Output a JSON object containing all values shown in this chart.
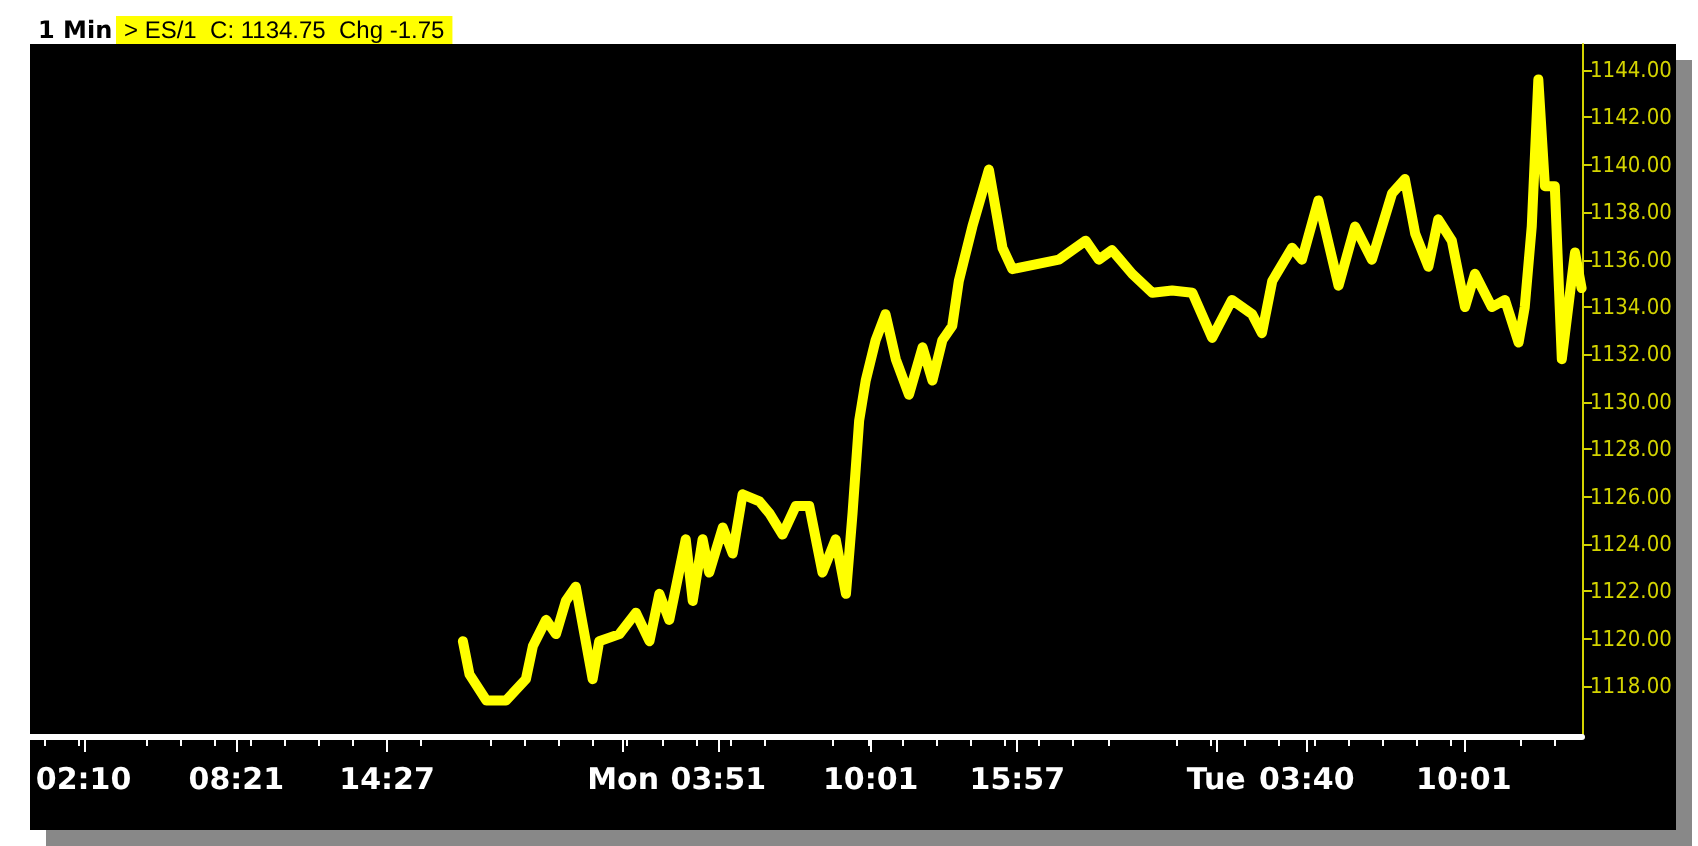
{
  "chart_data": {
    "type": "line",
    "title": "1 Min",
    "subtitle": "> ES/1  C: 1134.75  Chg -1.75",
    "x": [
      "--08-01T17:31",
      "--08-01T17:47",
      "--08-01T18:28",
      "--08-01T19:16",
      "--08-01T20:04",
      "--08-01T20:21",
      "--08-01T20:53",
      "--08-01T21:17",
      "--08-01T21:41",
      "--08-01T22:05",
      "--08-01T22:46",
      "--08-01T23:02",
      "--08-01T23:51",
      "--08-02T00:31",
      "--08-02T01:04",
      "--08-02T01:28",
      "--08-02T01:52",
      "--08-02T02:32",
      "--08-02T02:49",
      "--08-02T03:13",
      "--08-02T03:29",
      "--08-02T04:02",
      "--08-02T04:26",
      "--08-02T04:50",
      "--08-02T05:31",
      "--08-02T05:55",
      "--08-02T06:27",
      "--08-02T06:59",
      "--08-02T07:32",
      "--08-02T08:04",
      "--08-02T08:36",
      "--08-02T09:01",
      "--08-02T09:17",
      "--08-02T09:33",
      "--08-02T09:49",
      "--08-02T10:13",
      "--08-02T10:37",
      "--08-02T11:02",
      "--08-02T11:34",
      "--08-02T12:07",
      "--08-02T12:31",
      "--08-02T12:55",
      "--08-02T13:19",
      "--08-02T13:35",
      "--08-02T14:08",
      "--08-02T14:48",
      "--08-02T15:21",
      "--08-02T15:45",
      "--08-02T17:38",
      "--08-02T18:43",
      "--08-02T19:15",
      "--08-02T19:47",
      "--08-02T20:36",
      "--08-02T21:25",
      "--08-02T22:13",
      "--08-02T23:02",
      "--08-02T23:50",
      "--08-03T00:38",
      "--08-03T01:27",
      "--08-03T01:51",
      "--08-03T02:16",
      "--08-03T03:04",
      "--08-03T03:28",
      "--08-03T04:08",
      "--08-03T04:57",
      "--08-03T05:37",
      "--08-03T06:18",
      "--08-03T07:07",
      "--08-03T07:38",
      "--08-03T08:03",
      "--08-03T08:35",
      "--08-03T08:59",
      "--08-03T09:32",
      "--08-03T10:04",
      "--08-03T10:28",
      "--08-03T11:09",
      "--08-03T11:41",
      "--08-03T12:14",
      "--08-03T12:29",
      "--08-03T12:46",
      "--08-03T13:02",
      "--08-03T13:18",
      "--08-03T13:42",
      "--08-03T13:59",
      "--08-03T14:31",
      "--08-03T14:47"
    ],
    "series": [
      {
        "color": "#ffff00",
        "values": [
          1119.9,
          1118.5,
          1117.4,
          1117.4,
          1118.3,
          1119.7,
          1120.8,
          1120.2,
          1121.6,
          1122.2,
          1118.3,
          1119.9,
          1120.2,
          1121.1,
          1119.9,
          1121.9,
          1120.8,
          1124.2,
          1121.6,
          1124.2,
          1122.8,
          1124.7,
          1123.6,
          1126.1,
          1125.8,
          1125.3,
          1124.4,
          1125.6,
          1125.6,
          1122.8,
          1124.2,
          1121.9,
          1125.3,
          1129.2,
          1130.9,
          1132.6,
          1133.7,
          1131.8,
          1130.3,
          1132.3,
          1130.9,
          1132.6,
          1133.2,
          1135.1,
          1137.4,
          1139.8,
          1136.5,
          1135.6,
          1136.0,
          1136.8,
          1136.0,
          1136.4,
          1135.4,
          1134.6,
          1134.7,
          1134.6,
          1132.7,
          1134.3,
          1133.7,
          1132.9,
          1135.1,
          1136.5,
          1136.0,
          1138.5,
          1134.9,
          1137.4,
          1136.0,
          1138.8,
          1139.4,
          1137.1,
          1135.7,
          1137.7,
          1136.8,
          1134.0,
          1135.4,
          1134.0,
          1134.3,
          1132.5,
          1134.0,
          1137.4,
          1143.6,
          1139.1,
          1139.1,
          1131.8,
          1136.3,
          1134.8
        ]
      }
    ],
    "xlim": [
      "--08-01T00:00",
      "--08-03T14:48"
    ],
    "xticks": [
      {
        "value": "--08-01T02:10",
        "label": "02:10"
      },
      {
        "value": "--08-01T08:21",
        "label": "08:21"
      },
      {
        "value": "--08-01T14:27",
        "label": "14:27"
      },
      {
        "value": "--08-02T00:00",
        "label": "Mon"
      },
      {
        "value": "--08-02T03:51",
        "label": "03:51"
      },
      {
        "value": "--08-02T10:01",
        "label": "10:01"
      },
      {
        "value": "--08-02T15:57",
        "label": "15:57"
      },
      {
        "value": "--08-03T00:00",
        "label": "Tue"
      },
      {
        "value": "--08-03T03:40",
        "label": "03:40"
      },
      {
        "value": "--08-03T10:01",
        "label": "10:01"
      }
    ],
    "ylim": [
      1115.9,
      1145.1
    ],
    "yticks": [
      {
        "value": 1118,
        "label": "1118.00"
      },
      {
        "value": 1120,
        "label": "1120.00"
      },
      {
        "value": 1122,
        "label": "1122.00"
      },
      {
        "value": 1124,
        "label": "1124.00"
      },
      {
        "value": 1126,
        "label": "1126.00"
      },
      {
        "value": 1128,
        "label": "1128.00"
      },
      {
        "value": 1130,
        "label": "1130.00"
      },
      {
        "value": 1132,
        "label": "1132.00"
      },
      {
        "value": 1134,
        "label": "1134.00"
      },
      {
        "value": 1136,
        "label": "1136.00"
      },
      {
        "value": 1138,
        "label": "1138.00"
      },
      {
        "value": 1140,
        "label": "1140.00"
      },
      {
        "value": 1142,
        "label": "1142.00"
      },
      {
        "value": 1144,
        "label": "1144.00"
      }
    ],
    "grid": false,
    "marker": "none",
    "line_style": "solid"
  }
}
